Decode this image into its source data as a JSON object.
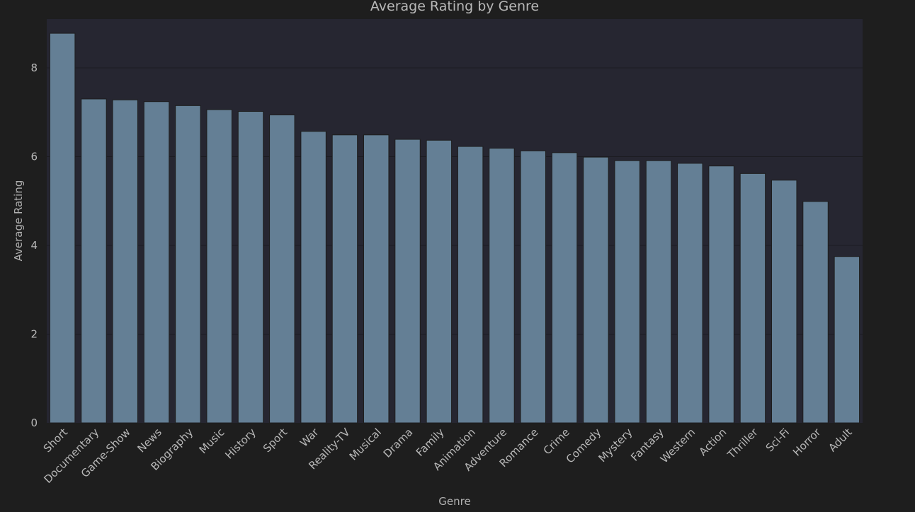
{
  "chart_data": {
    "type": "bar",
    "title": "Average Rating by Genre",
    "xlabel": "Genre",
    "ylabel": "Average Rating",
    "ylim": [
      0,
      9.1
    ],
    "yticks": [
      0,
      2,
      4,
      6,
      8
    ],
    "grid": true,
    "categories": [
      "Short",
      "Documentary",
      "Game-Show",
      "News",
      "Biography",
      "Music",
      "History",
      "Sport",
      "War",
      "Reality-TV",
      "Musical",
      "Drama",
      "Family",
      "Animation",
      "Adventure",
      "Romance",
      "Crime",
      "Comedy",
      "Mystery",
      "Fantasy",
      "Western",
      "Action",
      "Thriller",
      "Sci-Fi",
      "Horror",
      "Adult"
    ],
    "values": [
      8.78,
      7.3,
      7.28,
      7.24,
      7.15,
      7.06,
      7.02,
      6.94,
      6.57,
      6.49,
      6.49,
      6.39,
      6.37,
      6.23,
      6.19,
      6.13,
      6.09,
      5.99,
      5.91,
      5.91,
      5.85,
      5.79,
      5.62,
      5.47,
      4.99,
      3.75
    ],
    "colors": {
      "bar": "#647f95",
      "bar_edge": "#1e1e1e",
      "plot_background": "#262631",
      "grid": "#1c1c22",
      "text": "#b8b8b8",
      "page_background": "#1e1e1e"
    }
  }
}
